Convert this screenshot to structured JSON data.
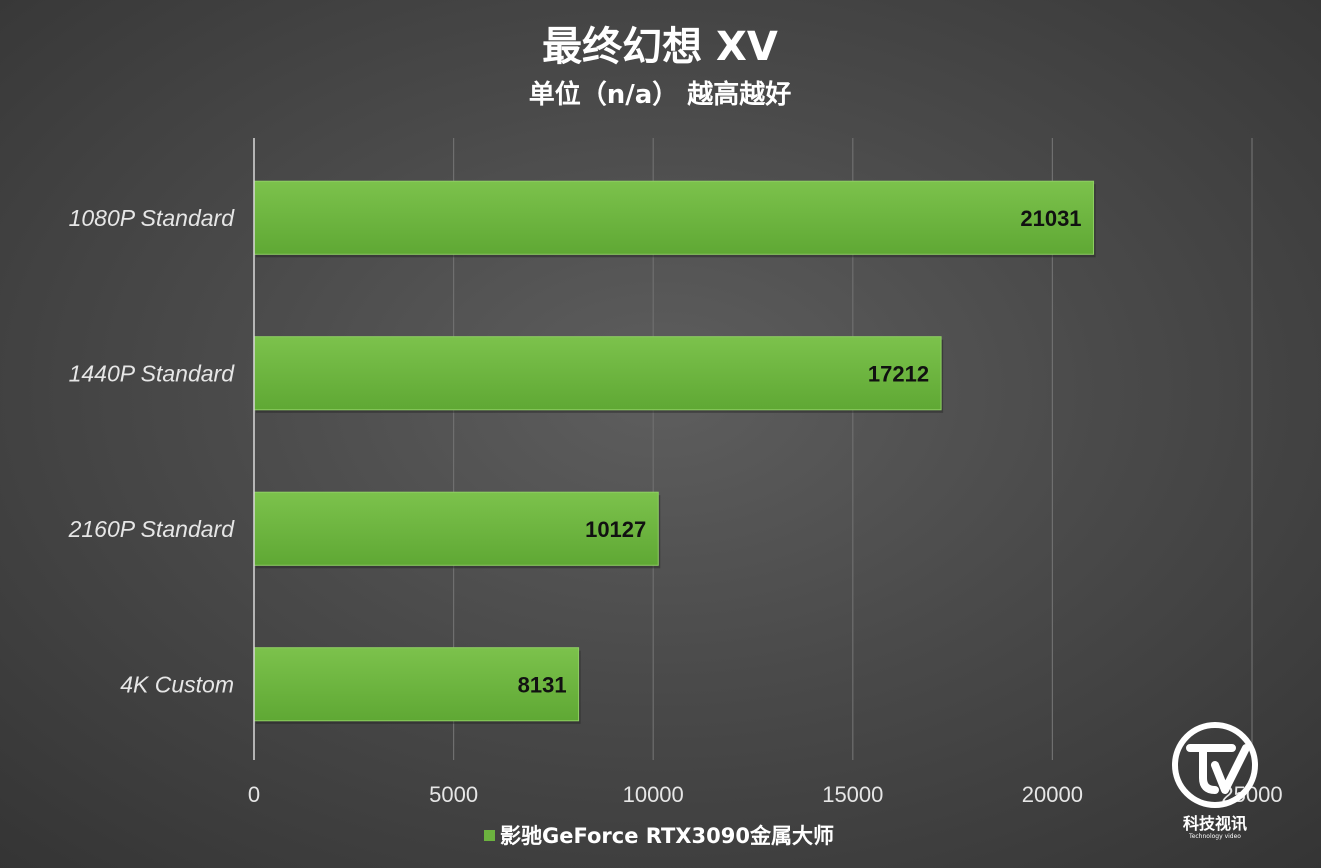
{
  "chart_data": {
    "type": "bar",
    "orientation": "horizontal",
    "title": "最终幻想 XV",
    "subtitle": "单位（n/a） 越高越好",
    "categories": [
      "1080P Standard",
      "1440P Standard",
      "2160P Standard",
      "4K Custom"
    ],
    "series": [
      {
        "name": "影驰GeForce RTX3090金属大师",
        "values": [
          21031,
          17212,
          10127,
          8131
        ]
      }
    ],
    "xlim": [
      0,
      25000
    ],
    "xticks": [
      0,
      5000,
      10000,
      15000,
      20000,
      25000
    ],
    "xtick_labels": [
      "0",
      "5000",
      "10000",
      "15000",
      "20000",
      "25000"
    ],
    "grid": true,
    "legend_position": "bottom",
    "data_labels": true,
    "colors": {
      "bar": "#6cb33f",
      "bar_light": "#86c85a",
      "background": "#4a4a4a"
    }
  },
  "watermark": {
    "logo_text": "科技视讯",
    "logo_subtext": "Technology video"
  }
}
